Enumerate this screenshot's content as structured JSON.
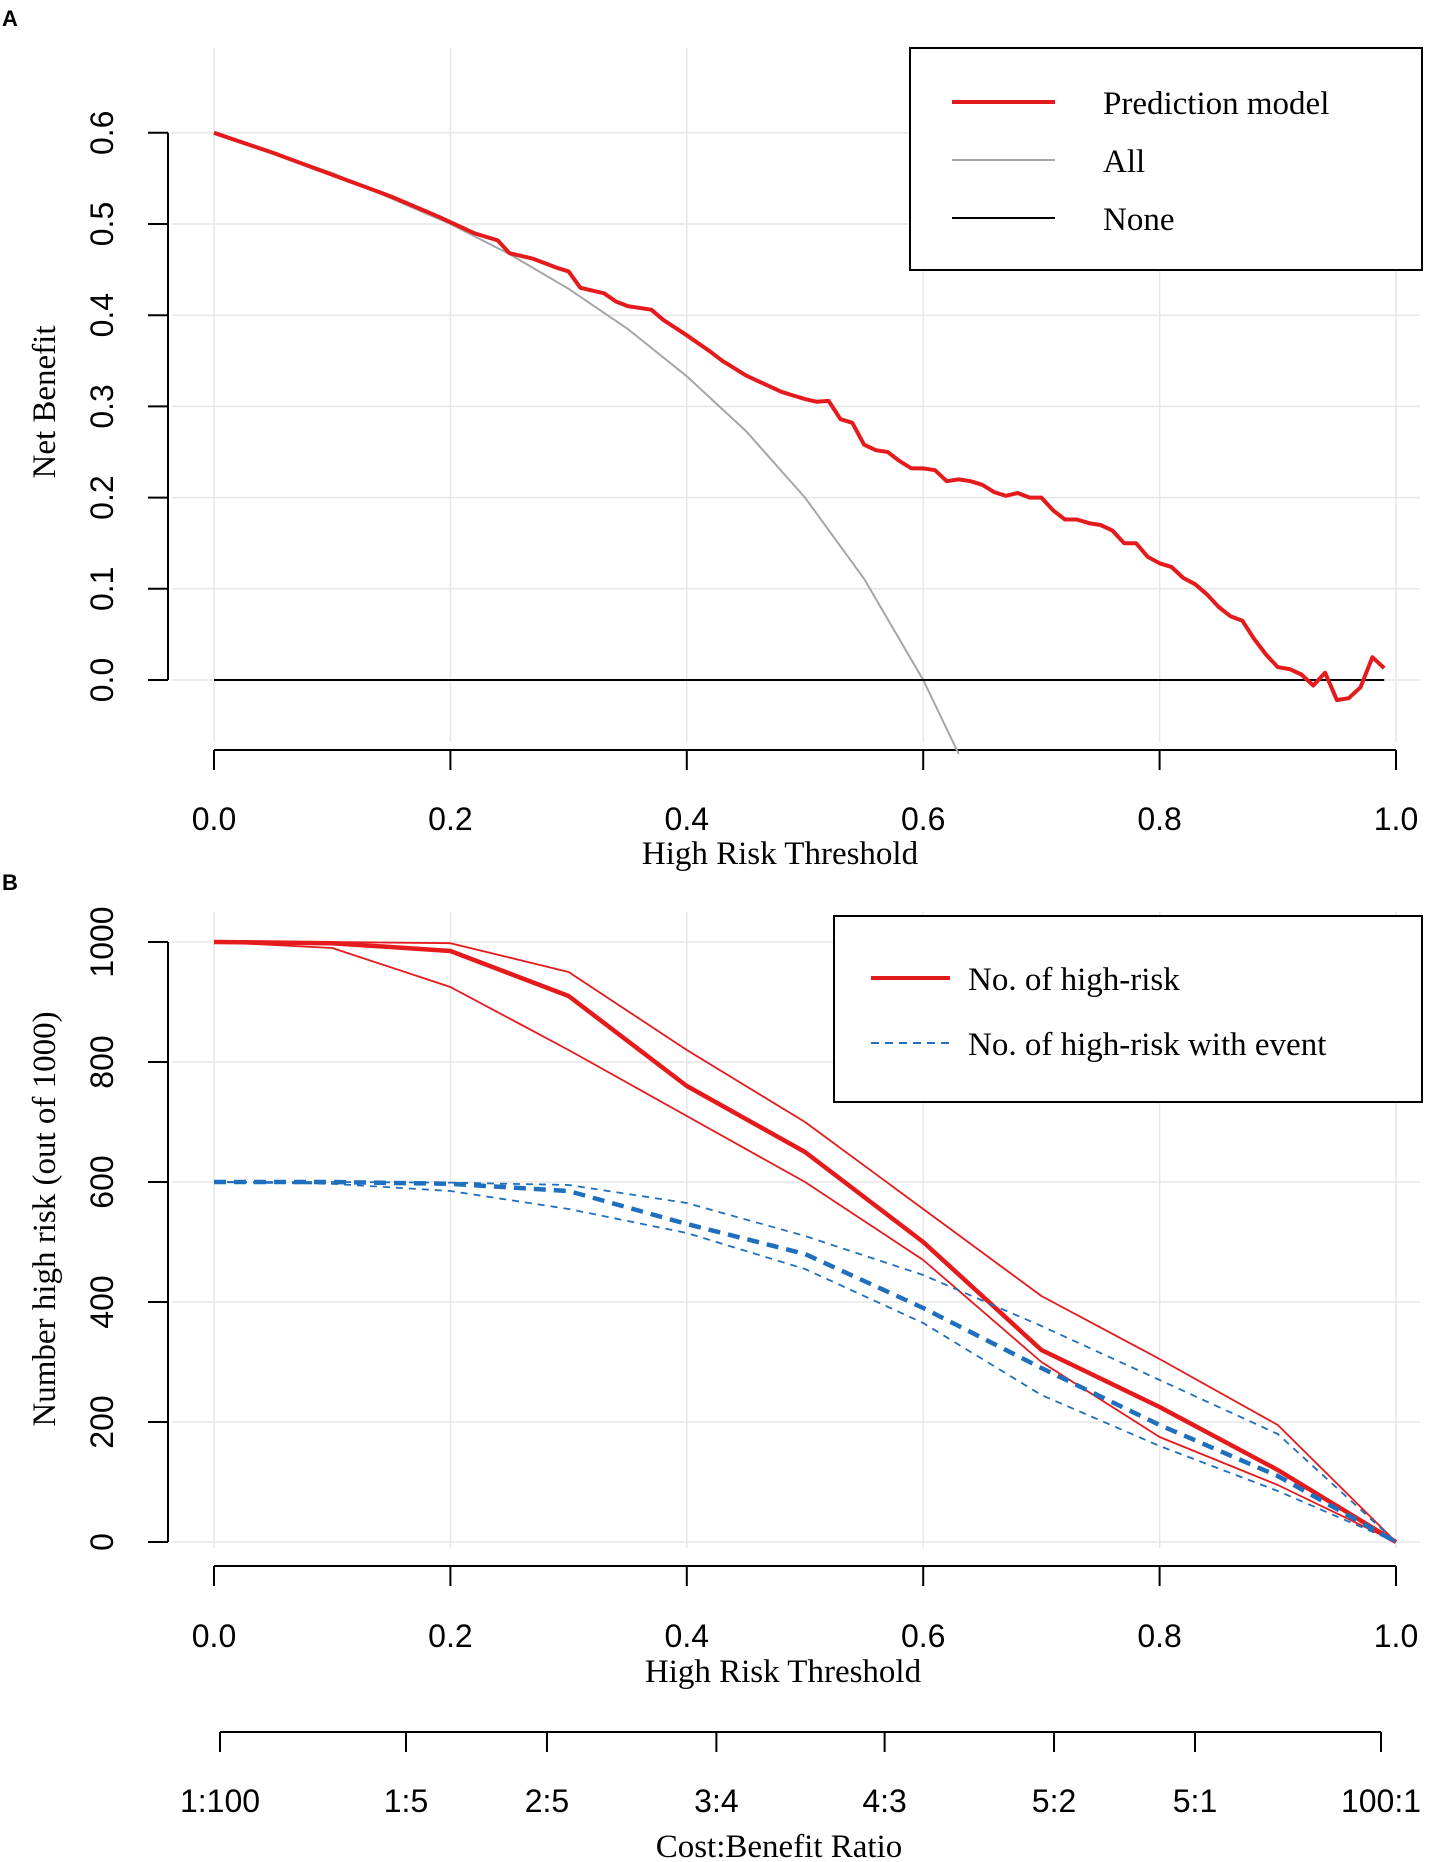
{
  "colors": {
    "model": "#e41a1c",
    "all": "#a6a6a6",
    "none": "#000000",
    "event": "#1f6fbf",
    "grid": "#e6e6e6"
  },
  "panels": {
    "a": {
      "letter": "A"
    },
    "b": {
      "letter": "B"
    }
  },
  "chart_data": [
    {
      "type": "line",
      "panel": "A",
      "xlabel": "High Risk Threshold",
      "ylabel": "Net Benefit",
      "xlim": [
        0.0,
        1.0
      ],
      "ylim": [
        -0.08,
        0.6
      ],
      "grid": true,
      "xticks": [
        "0.0",
        "0.2",
        "0.4",
        "0.6",
        "0.8",
        "1.0"
      ],
      "yticks": [
        "0.0",
        "0.1",
        "0.2",
        "0.3",
        "0.4",
        "0.5",
        "0.6"
      ],
      "legend": {
        "position": "top-right",
        "entries": [
          "Prediction model",
          "All",
          "None"
        ]
      },
      "series": [
        {
          "name": "Prediction model",
          "x": [
            0.0,
            0.05,
            0.1,
            0.15,
            0.19,
            0.2,
            0.22,
            0.24,
            0.25,
            0.27,
            0.29,
            0.3,
            0.31,
            0.33,
            0.34,
            0.35,
            0.37,
            0.38,
            0.4,
            0.42,
            0.43,
            0.44,
            0.45,
            0.46,
            0.47,
            0.48,
            0.49,
            0.5,
            0.51,
            0.52,
            0.53,
            0.54,
            0.55,
            0.56,
            0.57,
            0.58,
            0.59,
            0.6,
            0.61,
            0.62,
            0.63,
            0.64,
            0.65,
            0.66,
            0.67,
            0.68,
            0.69,
            0.7,
            0.71,
            0.72,
            0.73,
            0.74,
            0.75,
            0.76,
            0.77,
            0.78,
            0.79,
            0.8,
            0.81,
            0.82,
            0.83,
            0.84,
            0.85,
            0.86,
            0.87,
            0.88,
            0.89,
            0.9,
            0.91,
            0.92,
            0.93,
            0.94,
            0.95,
            0.96,
            0.97,
            0.98,
            0.99
          ],
          "values": [
            0.6,
            0.578,
            0.554,
            0.53,
            0.508,
            0.502,
            0.49,
            0.482,
            0.468,
            0.462,
            0.452,
            0.448,
            0.43,
            0.424,
            0.415,
            0.41,
            0.406,
            0.395,
            0.378,
            0.36,
            0.35,
            0.342,
            0.334,
            0.328,
            0.322,
            0.316,
            0.312,
            0.308,
            0.305,
            0.306,
            0.286,
            0.282,
            0.258,
            0.252,
            0.25,
            0.24,
            0.232,
            0.232,
            0.23,
            0.218,
            0.22,
            0.218,
            0.214,
            0.206,
            0.202,
            0.205,
            0.2,
            0.2,
            0.186,
            0.176,
            0.176,
            0.172,
            0.17,
            0.164,
            0.15,
            0.15,
            0.135,
            0.128,
            0.124,
            0.112,
            0.105,
            0.094,
            0.08,
            0.07,
            0.065,
            0.045,
            0.028,
            0.014,
            0.012,
            0.006,
            -0.006,
            0.008,
            -0.022,
            -0.02,
            -0.008,
            0.025,
            0.013
          ]
        },
        {
          "name": "All",
          "x": [
            0.0,
            0.1,
            0.2,
            0.25,
            0.3,
            0.35,
            0.4,
            0.45,
            0.5,
            0.55,
            0.6,
            0.63
          ],
          "values": [
            0.6,
            0.556,
            0.5,
            0.467,
            0.429,
            0.385,
            0.333,
            0.273,
            0.2,
            0.111,
            0.0,
            -0.081
          ]
        },
        {
          "name": "None",
          "x": [
            0.0,
            0.99
          ],
          "values": [
            0.0,
            0.0
          ]
        }
      ]
    },
    {
      "type": "line",
      "panel": "B",
      "xlabel": "High Risk Threshold",
      "ylabel": "Number high risk (out of 1000)",
      "secondary_xlabel": "Cost:Benefit Ratio",
      "xlim": [
        0.0,
        1.0
      ],
      "ylim": [
        0,
        1000
      ],
      "grid": true,
      "xticks": [
        "0.0",
        "0.2",
        "0.4",
        "0.6",
        "0.8",
        "1.0"
      ],
      "yticks": [
        "0",
        "200",
        "400",
        "600",
        "800",
        "1000"
      ],
      "cost_benefit_ticks": [
        {
          "label": "1:100",
          "threshold": 0.01
        },
        {
          "label": "1:5",
          "threshold": 0.167
        },
        {
          "label": "2:5",
          "threshold": 0.286
        },
        {
          "label": "3:4",
          "threshold": 0.429
        },
        {
          "label": "4:3",
          "threshold": 0.571
        },
        {
          "label": "5:2",
          "threshold": 0.714
        },
        {
          "label": "5:1",
          "threshold": 0.833
        },
        {
          "label": "100:1",
          "threshold": 0.99
        }
      ],
      "legend": {
        "position": "top-right",
        "entries": [
          "No. of high-risk",
          "No. of high-risk with event"
        ]
      },
      "x": [
        0.0,
        0.1,
        0.2,
        0.3,
        0.4,
        0.5,
        0.6,
        0.7,
        0.8,
        0.9,
        1.0
      ],
      "series": [
        {
          "name": "No. of high-risk",
          "role": "estimate",
          "values": [
            1000,
            998,
            985,
            910,
            760,
            650,
            500,
            320,
            225,
            120,
            0
          ]
        },
        {
          "name": "No. of high-risk upper",
          "role": "upper",
          "values": [
            1000,
            1000,
            998,
            950,
            820,
            700,
            555,
            410,
            305,
            195,
            0
          ]
        },
        {
          "name": "No. of high-risk lower",
          "role": "lower",
          "values": [
            1000,
            990,
            925,
            820,
            710,
            600,
            470,
            300,
            175,
            95,
            0
          ]
        },
        {
          "name": "No. of high-risk with event",
          "role": "estimate",
          "values": [
            600,
            600,
            597,
            585,
            530,
            480,
            390,
            290,
            195,
            110,
            0
          ]
        },
        {
          "name": "No. of high-risk with event upper",
          "role": "upper",
          "values": [
            600,
            600,
            599,
            595,
            565,
            510,
            445,
            360,
            270,
            180,
            0
          ]
        },
        {
          "name": "No. of high-risk with event lower",
          "role": "lower",
          "values": [
            600,
            597,
            585,
            555,
            515,
            455,
            365,
            245,
            160,
            85,
            0
          ]
        }
      ]
    }
  ]
}
